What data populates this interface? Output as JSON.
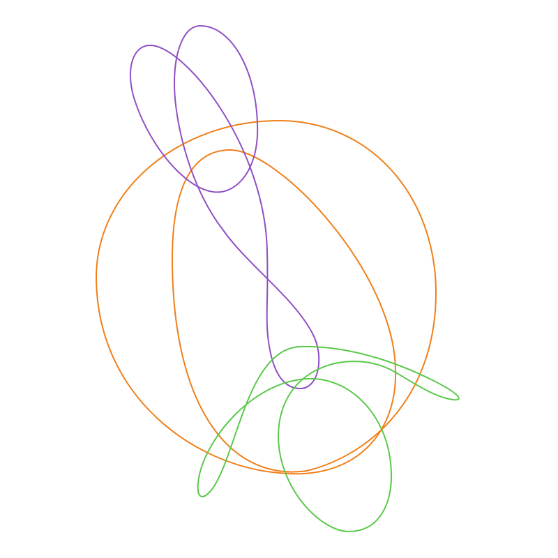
{
  "background": "#ffffff",
  "curves": [
    {
      "name": "orange-curve",
      "color": "#f07f1a"
    },
    {
      "name": "purple-curve",
      "color": "#8f4fc4"
    },
    {
      "name": "green-curve",
      "color": "#5ac84a"
    }
  ]
}
